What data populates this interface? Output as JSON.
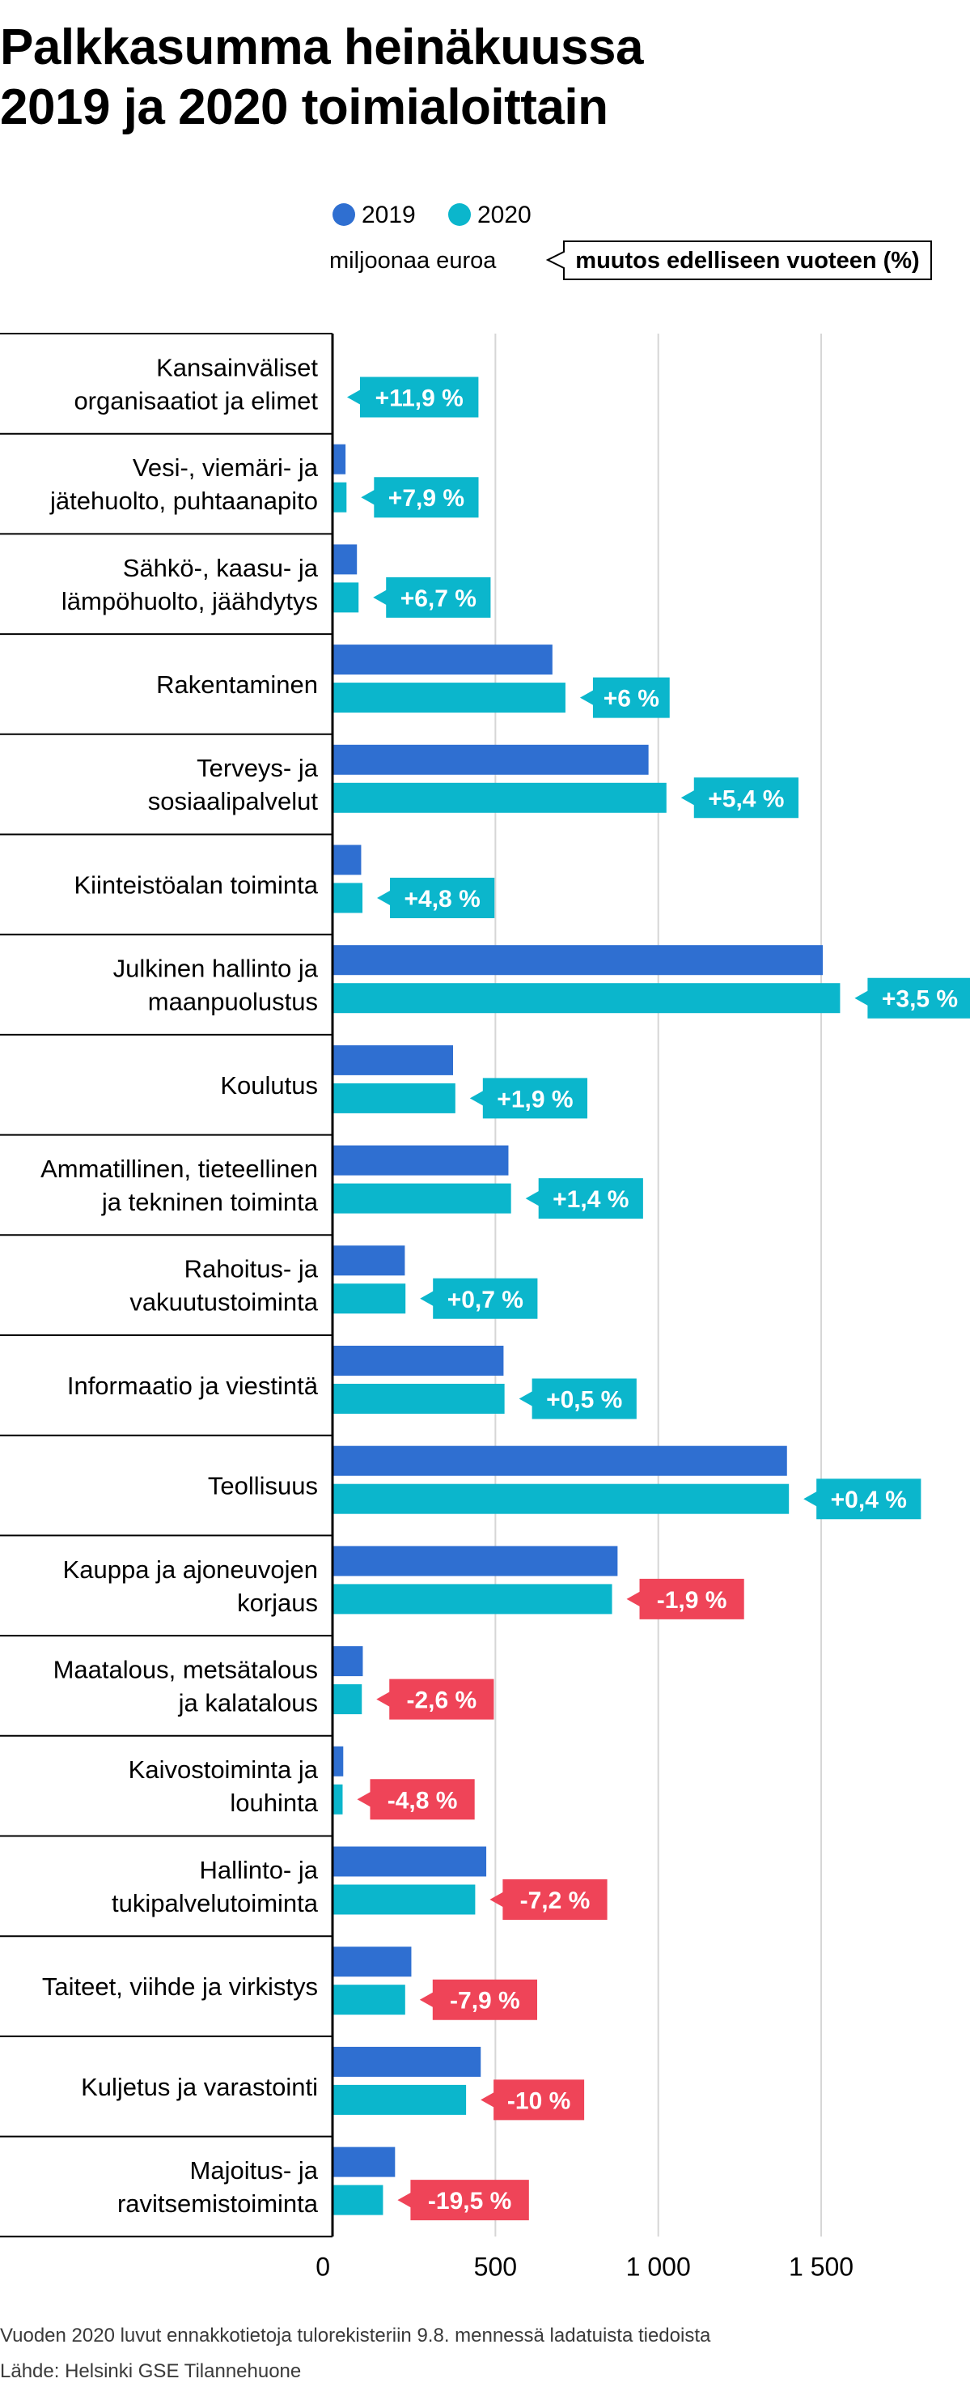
{
  "title_lines": [
    "Palkkasumma heinäkuussa",
    "2019 ja 2020 toimialoittain"
  ],
  "footnote": "Vuoden 2020 luvut ennakkotietoja tulorekisteriin 9.8. mennessä ladatuista tiedoista",
  "source": "Lähde: Helsinki GSE Tilannehuone",
  "colors": {
    "series_2019": "#2f6fd1",
    "series_2020": "#0bb6cc",
    "badge_positive": "#0bb6cc",
    "badge_negative": "#ef4458",
    "gridline": "#d6d6d6",
    "axis": "#000000"
  },
  "chart_data": {
    "type": "bar",
    "orientation": "horizontal",
    "unit_label": "miljoonaa euroa",
    "change_label": "muutos edelliseen vuoteen (%)",
    "legend": [
      "2019",
      "2020"
    ],
    "xlim": [
      0,
      1700
    ],
    "ticks": [
      0,
      500,
      1000,
      1500
    ],
    "tick_labels": [
      "0",
      "500",
      "1 000",
      "1 500"
    ],
    "categories": [
      {
        "label": [
          "Kansainväliset",
          "organisaatiot ja elimet"
        ],
        "v2019": 0,
        "v2020": 0,
        "change": "+11,9 %",
        "positive": true
      },
      {
        "label": [
          "Vesi-, viemäri- ja",
          "jätehuolto, puhtaanapito"
        ],
        "v2019": 40,
        "v2020": 43,
        "change": "+7,9 %",
        "positive": true
      },
      {
        "label": [
          "Sähkö-, kaasu- ja",
          "lämpöhuolto, jäähdytys"
        ],
        "v2019": 75,
        "v2020": 80,
        "change": "+6,7 %",
        "positive": true
      },
      {
        "label": [
          "Rakentaminen"
        ],
        "v2019": 675,
        "v2020": 715,
        "change": "+6 %",
        "positive": true
      },
      {
        "label": [
          "Terveys- ja",
          "sosiaalipalvelut"
        ],
        "v2019": 970,
        "v2020": 1025,
        "change": "+5,4 %",
        "positive": true
      },
      {
        "label": [
          "Kiinteistöalan toiminta"
        ],
        "v2019": 88,
        "v2020": 92,
        "change": "+4,8 %",
        "positive": true
      },
      {
        "label": [
          "Julkinen hallinto ja",
          "maanpuolustus"
        ],
        "v2019": 1505,
        "v2020": 1558,
        "change": "+3,5 %",
        "positive": true
      },
      {
        "label": [
          "Koulutus"
        ],
        "v2019": 370,
        "v2020": 377,
        "change": "+1,9 %",
        "positive": true
      },
      {
        "label": [
          "Ammatillinen, tieteellinen",
          "ja tekninen toiminta"
        ],
        "v2019": 540,
        "v2020": 548,
        "change": "+1,4 %",
        "positive": true
      },
      {
        "label": [
          "Rahoitus- ja",
          "vakuutustoiminta"
        ],
        "v2019": 222,
        "v2020": 224,
        "change": "+0,7 %",
        "positive": true
      },
      {
        "label": [
          "Informaatio ja viestintä"
        ],
        "v2019": 525,
        "v2020": 528,
        "change": "+0,5 %",
        "positive": true
      },
      {
        "label": [
          "Teollisuus"
        ],
        "v2019": 1395,
        "v2020": 1401,
        "change": "+0,4 %",
        "positive": true
      },
      {
        "label": [
          "Kauppa ja ajoneuvojen",
          "korjaus"
        ],
        "v2019": 875,
        "v2020": 858,
        "change": "-1,9 %",
        "positive": false
      },
      {
        "label": [
          "Maatalous, metsätalous",
          "ja kalatalous"
        ],
        "v2019": 93,
        "v2020": 90,
        "change": "-2,6 %",
        "positive": false
      },
      {
        "label": [
          "Kaivostoiminta ja",
          "louhinta"
        ],
        "v2019": 33,
        "v2020": 31,
        "change": "-4,8 %",
        "positive": false
      },
      {
        "label": [
          "Hallinto- ja",
          "tukipalvelutoiminta"
        ],
        "v2019": 472,
        "v2020": 438,
        "change": "-7,2 %",
        "positive": false
      },
      {
        "label": [
          "Taiteet, viihde ja virkistys"
        ],
        "v2019": 242,
        "v2020": 223,
        "change": "-7,9 %",
        "positive": false
      },
      {
        "label": [
          "Kuljetus ja varastointi"
        ],
        "v2019": 455,
        "v2020": 410,
        "change": "-10 %",
        "positive": false
      },
      {
        "label": [
          "Majoitus- ja",
          "ravitsemistoiminta"
        ],
        "v2019": 192,
        "v2020": 155,
        "change": "-19,5 %",
        "positive": false
      }
    ]
  }
}
